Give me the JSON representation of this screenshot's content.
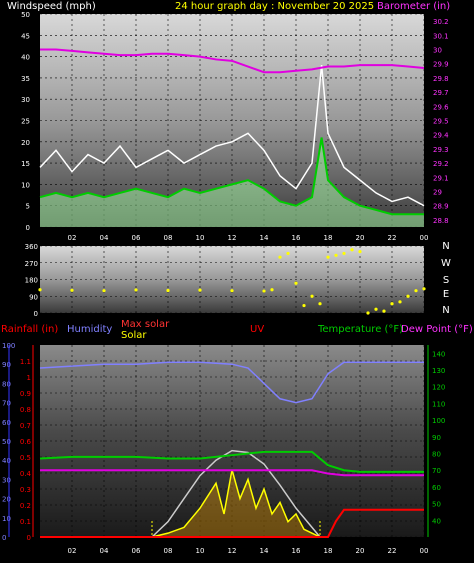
{
  "header": {
    "wind_label": "Windspeed (mph)",
    "title": "24 hour graph day : November 20 2025",
    "baro_label": "Barometer (in)"
  },
  "colors": {
    "wind_label": "#ffffff",
    "title": "#ffff00",
    "baro_label": "#ff33ff",
    "wind_gust": "#ffffff",
    "wind_avg": "#00cc00",
    "wind_fill": "#aaffaa",
    "barometer": "#e000e0",
    "direction": "#ffff00",
    "rainfall": "#ff0000",
    "humidity": "#8080ff",
    "max_solar": "#ff3333",
    "solar": "#ffff00",
    "uv": "#ff0000",
    "temperature": "#00cc00",
    "dew_point": "#e000e0"
  },
  "legend_bottom": {
    "rainfall": "Rainfall (in)",
    "humidity": "Humidity",
    "max_solar": "Max solar",
    "solar": "Solar",
    "uv": "UV",
    "temperature": "Temperature (°F)",
    "dew_point": "Dew Point (°F)"
  },
  "direction_labels": [
    "N",
    "W",
    "S",
    "E",
    "N"
  ],
  "chart_data": [
    {
      "type": "line",
      "name": "wind_barometer",
      "x_ticks": [
        "02",
        "04",
        "06",
        "08",
        "10",
        "12",
        "14",
        "16",
        "18",
        "20",
        "22",
        "00"
      ],
      "y_left_ticks": [
        "50",
        "45",
        "40",
        "35",
        "30",
        "25",
        "20",
        "15",
        "10",
        "5",
        "0"
      ],
      "y_left_range": [
        0,
        50
      ],
      "y_right_ticks": [
        "30.2",
        "30.1",
        "30",
        "29.9",
        "29.8",
        "29.7",
        "29.6",
        "29.5",
        "29.4",
        "29.3",
        "29.2",
        "29.1",
        "29",
        "28.9",
        "28.8"
      ],
      "y_right_range": [
        28.75,
        30.25
      ],
      "x_range_hours": [
        0,
        24
      ],
      "series": [
        {
          "key": "gust",
          "values": [
            [
              0,
              14
            ],
            [
              1,
              18
            ],
            [
              2,
              13
            ],
            [
              3,
              17
            ],
            [
              4,
              15
            ],
            [
              5,
              19
            ],
            [
              6,
              14
            ],
            [
              7,
              16
            ],
            [
              8,
              18
            ],
            [
              9,
              15
            ],
            [
              10,
              17
            ],
            [
              11,
              19
            ],
            [
              12,
              20
            ],
            [
              13,
              22
            ],
            [
              14,
              18
            ],
            [
              15,
              12
            ],
            [
              16,
              9
            ],
            [
              17,
              15
            ],
            [
              17.6,
              38
            ],
            [
              18,
              22
            ],
            [
              19,
              14
            ],
            [
              20,
              11
            ],
            [
              21,
              8
            ],
            [
              22,
              6
            ],
            [
              23,
              7
            ],
            [
              24,
              5
            ]
          ]
        },
        {
          "key": "avg",
          "values": [
            [
              0,
              7
            ],
            [
              1,
              8
            ],
            [
              2,
              7
            ],
            [
              3,
              8
            ],
            [
              4,
              7
            ],
            [
              5,
              8
            ],
            [
              6,
              9
            ],
            [
              7,
              8
            ],
            [
              8,
              7
            ],
            [
              9,
              9
            ],
            [
              10,
              8
            ],
            [
              11,
              9
            ],
            [
              12,
              10
            ],
            [
              13,
              11
            ],
            [
              14,
              9
            ],
            [
              15,
              6
            ],
            [
              16,
              5
            ],
            [
              17,
              7
            ],
            [
              17.6,
              21
            ],
            [
              18,
              11
            ],
            [
              19,
              7
            ],
            [
              20,
              5
            ],
            [
              21,
              4
            ],
            [
              22,
              3
            ],
            [
              23,
              3
            ],
            [
              24,
              3
            ]
          ]
        },
        {
          "key": "barometer",
          "values": [
            [
              0,
              30.0
            ],
            [
              1,
              30.0
            ],
            [
              2,
              29.99
            ],
            [
              3,
              29.98
            ],
            [
              4,
              29.97
            ],
            [
              5,
              29.96
            ],
            [
              6,
              29.96
            ],
            [
              7,
              29.97
            ],
            [
              8,
              29.97
            ],
            [
              9,
              29.96
            ],
            [
              10,
              29.95
            ],
            [
              11,
              29.93
            ],
            [
              12,
              29.92
            ],
            [
              13,
              29.88
            ],
            [
              14,
              29.84
            ],
            [
              15,
              29.84
            ],
            [
              16,
              29.85
            ],
            [
              17,
              29.86
            ],
            [
              18,
              29.88
            ],
            [
              19,
              29.88
            ],
            [
              20,
              29.89
            ],
            [
              21,
              29.89
            ],
            [
              22,
              29.89
            ],
            [
              23,
              29.88
            ],
            [
              24,
              29.87
            ]
          ]
        }
      ]
    },
    {
      "type": "scatter",
      "name": "wind_direction",
      "x_ticks": [
        "02",
        "04",
        "06",
        "08",
        "10",
        "12",
        "14",
        "16",
        "18",
        "20",
        "22",
        "00"
      ],
      "y_ticks": [
        "360",
        "270",
        "180",
        "90",
        "0"
      ],
      "y_range": [
        0,
        360
      ],
      "series": [
        {
          "key": "direction",
          "values": [
            [
              0,
              125
            ],
            [
              2,
              122
            ],
            [
              4,
              120
            ],
            [
              6,
              124
            ],
            [
              8,
              121
            ],
            [
              10,
              123
            ],
            [
              12,
              120
            ],
            [
              14,
              118
            ],
            [
              14.5,
              125
            ],
            [
              15,
              300
            ],
            [
              15.5,
              320
            ],
            [
              16,
              160
            ],
            [
              16.5,
              40
            ],
            [
              17,
              90
            ],
            [
              17.5,
              50
            ],
            [
              18,
              300
            ],
            [
              18.5,
              310
            ],
            [
              19,
              320
            ],
            [
              19.5,
              340
            ],
            [
              20,
              330
            ],
            [
              20.5,
              0
            ],
            [
              21,
              20
            ],
            [
              21.5,
              10
            ],
            [
              22,
              50
            ],
            [
              22.5,
              60
            ],
            [
              23,
              90
            ],
            [
              23.5,
              120
            ],
            [
              24,
              130
            ]
          ]
        }
      ]
    },
    {
      "type": "line",
      "name": "rain_humidity_solar_temp",
      "x_ticks": [
        "02",
        "04",
        "06",
        "08",
        "10",
        "12",
        "14",
        "16",
        "18",
        "20",
        "22",
        "00"
      ],
      "y_left_ticks": [
        "100",
        "90",
        "80",
        "70",
        "60",
        "50",
        "40",
        "30",
        "20",
        "10",
        "0"
      ],
      "y_rain_ticks": [
        "1.1",
        "1",
        "0.9",
        "0.8",
        "0.7",
        "0.6",
        "0.5",
        "0.4",
        "0.3",
        "0.2",
        "0.1",
        "0"
      ],
      "y_right_ticks": [
        "140",
        "130",
        "120",
        "110",
        "100",
        "90",
        "80",
        "70",
        "60",
        "50",
        "40"
      ],
      "y_left_range": [
        0,
        100
      ],
      "y_right_range": [
        30,
        145
      ],
      "series": [
        {
          "key": "humidity",
          "values": [
            [
              0,
              88
            ],
            [
              2,
              89
            ],
            [
              4,
              90
            ],
            [
              6,
              90
            ],
            [
              8,
              91
            ],
            [
              10,
              91
            ],
            [
              12,
              90
            ],
            [
              13,
              88
            ],
            [
              14,
              80
            ],
            [
              15,
              72
            ],
            [
              16,
              70
            ],
            [
              17,
              72
            ],
            [
              18,
              85
            ],
            [
              19,
              91
            ],
            [
              20,
              91
            ],
            [
              22,
              91
            ],
            [
              24,
              91
            ]
          ]
        },
        {
          "key": "temperature",
          "values": [
            [
              0,
              77
            ],
            [
              2,
              78
            ],
            [
              4,
              78
            ],
            [
              6,
              78
            ],
            [
              8,
              77
            ],
            [
              10,
              77
            ],
            [
              12,
              79
            ],
            [
              14,
              81
            ],
            [
              16,
              81
            ],
            [
              17,
              81
            ],
            [
              18,
              73
            ],
            [
              19,
              70
            ],
            [
              20,
              69
            ],
            [
              22,
              69
            ],
            [
              24,
              69
            ]
          ]
        },
        {
          "key": "dew_point",
          "values": [
            [
              0,
              70
            ],
            [
              2,
              70
            ],
            [
              4,
              70
            ],
            [
              6,
              70
            ],
            [
              8,
              70
            ],
            [
              10,
              70
            ],
            [
              12,
              70
            ],
            [
              14,
              70
            ],
            [
              16,
              70
            ],
            [
              17,
              70
            ],
            [
              18,
              68
            ],
            [
              19,
              67
            ],
            [
              20,
              67
            ],
            [
              22,
              67
            ],
            [
              24,
              67
            ]
          ]
        },
        {
          "key": "max_solar",
          "values": [
            [
              7,
              0
            ],
            [
              8,
              8
            ],
            [
              9,
              20
            ],
            [
              10,
              32
            ],
            [
              11,
              40
            ],
            [
              12,
              45
            ],
            [
              13,
              44
            ],
            [
              14,
              38
            ],
            [
              15,
              27
            ],
            [
              16,
              15
            ],
            [
              17,
              5
            ],
            [
              17.5,
              0
            ]
          ]
        },
        {
          "key": "solar",
          "values": [
            [
              7,
              0
            ],
            [
              8,
              2
            ],
            [
              9,
              5
            ],
            [
              10,
              15
            ],
            [
              11,
              28
            ],
            [
              11.5,
              12
            ],
            [
              12,
              35
            ],
            [
              12.5,
              20
            ],
            [
              13,
              30
            ],
            [
              13.5,
              15
            ],
            [
              14,
              25
            ],
            [
              14.5,
              12
            ],
            [
              15,
              18
            ],
            [
              15.5,
              8
            ],
            [
              16,
              12
            ],
            [
              16.5,
              4
            ],
            [
              17,
              2
            ],
            [
              17.5,
              0
            ]
          ]
        },
        {
          "key": "rainfall",
          "values": [
            [
              0,
              0
            ],
            [
              18,
              0
            ],
            [
              18.5,
              0.1
            ],
            [
              19,
              0.17
            ],
            [
              20,
              0.17
            ],
            [
              22,
              0.17
            ],
            [
              24,
              0.17
            ]
          ]
        }
      ]
    }
  ]
}
